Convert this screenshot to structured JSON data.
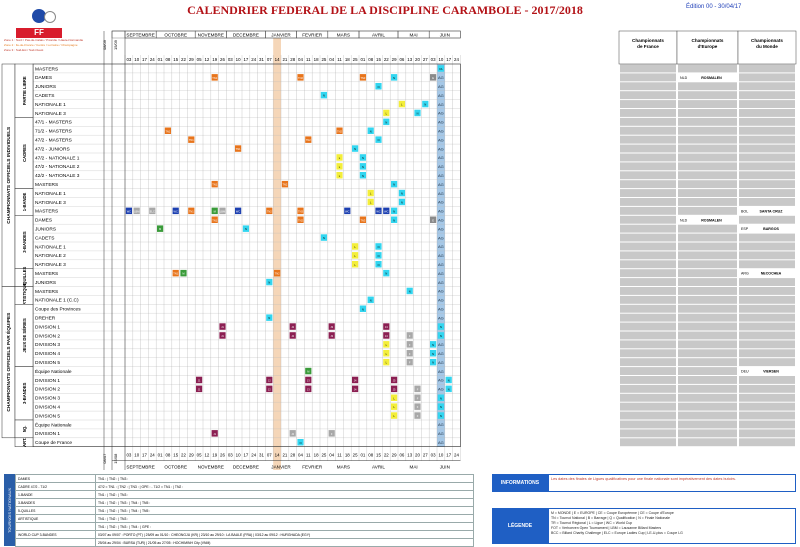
{
  "title": "CALENDRIER FEDERAL DE LA DISCIPLINE CARAMBOLE - 2017/2018",
  "edition": "Édition 00 - 30/04/17",
  "logo": {
    "text": "FF BILLARD"
  },
  "zones": [
    {
      "text": "Zone 1 : Nord / Pas-de-Calais / Picardie / Haute-Normandie",
      "class": "r"
    },
    {
      "text": "Zone 2 : Ile-de-France / Centre / Lorraine / Champagne",
      "class": "o"
    },
    {
      "text": "Zone 3 : Sud-Est / Sud-Ouest",
      "class": "r"
    }
  ],
  "date_corner": {
    "top": "08/09",
    "top2": "15/09",
    "bottom": "08/07",
    "bottom2": "15/08"
  },
  "months": [
    {
      "name": "SEPTEMBRE",
      "days": [
        "03",
        "10",
        "17",
        "24"
      ]
    },
    {
      "name": "OCTOBRE",
      "days": [
        "01",
        "08",
        "15",
        "22",
        "29"
      ]
    },
    {
      "name": "NOVEMBRE",
      "days": [
        "05",
        "12",
        "19",
        "26"
      ]
    },
    {
      "name": "DECEMBRE",
      "days": [
        "03",
        "10",
        "17",
        "24",
        "31"
      ]
    },
    {
      "name": "JANVIER",
      "days": [
        "07",
        "14",
        "21",
        "28"
      ]
    },
    {
      "name": "FEVRIER",
      "days": [
        "04",
        "11",
        "18",
        "25"
      ]
    },
    {
      "name": "MARS",
      "days": [
        "04",
        "11",
        "18",
        "25"
      ]
    },
    {
      "name": "AVRIL",
      "days": [
        "01",
        "08",
        "15",
        "22",
        "29"
      ]
    },
    {
      "name": "MAI",
      "days": [
        "06",
        "13",
        "20",
        "27"
      ]
    },
    {
      "name": "JUIN",
      "days": [
        "03",
        "10",
        "17",
        "24"
      ]
    }
  ],
  "champ_headers": [
    "Championnats de France",
    "Championnats d'Europe",
    "Championnats du Monde"
  ],
  "groups": [
    {
      "label": "CHAMPIONNATS OFFICIELS INDIVIDUELS",
      "from": 0,
      "to": 24
    },
    {
      "label": "CHAMPIONNATS OFFICIELS PAR ÉQUIPES",
      "from": 25,
      "to": 41
    }
  ],
  "sections": [
    {
      "label": "PARTIE LIBRE",
      "from": 0,
      "to": 5
    },
    {
      "label": "CADRES",
      "from": 6,
      "to": 13
    },
    {
      "label": "1-BANDE",
      "from": 14,
      "to": 16
    },
    {
      "label": "3-BANDES",
      "from": 17,
      "to": 22
    },
    {
      "label": "5-QUILLES",
      "from": 23,
      "to": 24
    },
    {
      "label": "ARTISTIQUE",
      "from": 25,
      "to": 26
    },
    {
      "label": "JEUX DE SÉRIES",
      "from": 27,
      "to": 33
    },
    {
      "label": "3-BANDES",
      "from": 34,
      "to": 39
    },
    {
      "label": "5Q.",
      "from": 40,
      "to": 41
    },
    {
      "label": "ART.",
      "from": 42,
      "to": 42
    }
  ],
  "rows": [
    {
      "name": "MASTERS"
    },
    {
      "name": "DAMES",
      "eu": "ROSMALEN",
      "eu_code": "NLD"
    },
    {
      "name": "JUNIORS"
    },
    {
      "name": "CADETS"
    },
    {
      "name": "NATIONALE 1"
    },
    {
      "name": "NATIONALE 3"
    },
    {
      "name": "47/1 - MASTERS"
    },
    {
      "name": "71/2 - MASTERS"
    },
    {
      "name": "47/2 - MASTERS"
    },
    {
      "name": "47/2 - JUNIORS"
    },
    {
      "name": "47/2 - NATIONALE 1"
    },
    {
      "name": "47/2 - NATIONALE 2"
    },
    {
      "name": "42/2 - NATIONALE 3"
    },
    {
      "name": "MASTERS"
    },
    {
      "name": "NATIONALE 1"
    },
    {
      "name": "NATIONALE 3"
    },
    {
      "name": "MASTERS",
      "world": "SANTA CRUZ",
      "world_code": "BOL"
    },
    {
      "name": "DAMES",
      "eu": "ROSMALEN",
      "eu_code": "NLD"
    },
    {
      "name": "JUNIORS",
      "world": "BARGOS",
      "world_code": "ESP"
    },
    {
      "name": "CADETS"
    },
    {
      "name": "NATIONALE 1"
    },
    {
      "name": "NATIONALE 2"
    },
    {
      "name": "NATIONALE 3"
    },
    {
      "name": "MASTERS",
      "world": "NECOCHEA",
      "world_code": "ARG"
    },
    {
      "name": "JUNIORS"
    },
    {
      "name": "MASTERS"
    },
    {
      "name": "NATIONALE 1 (C.C)"
    },
    {
      "name": "Coupe des Provinces"
    },
    {
      "name": "DREHER"
    },
    {
      "name": "DIVISION 1"
    },
    {
      "name": "DIVISION 2"
    },
    {
      "name": "DIVISION 3"
    },
    {
      "name": "DIVISION 4"
    },
    {
      "name": "DIVISION 5"
    },
    {
      "name": "Équipe Nationale",
      "world": "VIERSEN",
      "world_code": "DEU"
    },
    {
      "name": "DIVISION 1"
    },
    {
      "name": "DIVISION 2"
    },
    {
      "name": "DIVISION 3"
    },
    {
      "name": "DIVISION 4"
    },
    {
      "name": "DIVISION 5"
    },
    {
      "name": "Équipe Nationale"
    },
    {
      "name": "DIVISION 1"
    },
    {
      "name": "Coupe de France"
    }
  ],
  "events": [
    {
      "r": 0,
      "c": 40,
      "t": "FA",
      "k": "cy"
    },
    {
      "r": 1,
      "c": 11,
      "t": "TN1",
      "k": "or"
    },
    {
      "r": 1,
      "c": 22,
      "t": "TN2",
      "k": "or"
    },
    {
      "r": 1,
      "c": 30,
      "t": "TN3",
      "k": "or"
    },
    {
      "r": 1,
      "c": 34,
      "t": "N",
      "k": "cy"
    },
    {
      "r": 1,
      "c": 39,
      "t": "E",
      "k": "gr"
    },
    {
      "r": 2,
      "c": 32,
      "t": "N",
      "k": "cy"
    },
    {
      "r": 3,
      "c": 25,
      "t": "N",
      "k": "cy"
    },
    {
      "r": 4,
      "c": 35,
      "t": "L",
      "k": "ye"
    },
    {
      "r": 4,
      "c": 38,
      "t": "N",
      "k": "cy"
    },
    {
      "r": 5,
      "c": 33,
      "t": "L",
      "k": "ye"
    },
    {
      "r": 5,
      "c": 37,
      "t": "N",
      "k": "cy"
    },
    {
      "r": 6,
      "c": 33,
      "t": "N",
      "k": "cy"
    },
    {
      "r": 7,
      "c": 5,
      "t": "TN1",
      "k": "or"
    },
    {
      "r": 7,
      "c": 27,
      "t": "TN2",
      "k": "or"
    },
    {
      "r": 7,
      "c": 31,
      "t": "N",
      "k": "cy"
    },
    {
      "r": 8,
      "c": 8,
      "t": "TN1",
      "k": "or"
    },
    {
      "r": 8,
      "c": 23,
      "t": "TN2",
      "k": "or"
    },
    {
      "r": 8,
      "c": 32,
      "t": "N",
      "k": "cy"
    },
    {
      "r": 9,
      "c": 14,
      "t": "TN1",
      "k": "or"
    },
    {
      "r": 9,
      "c": 29,
      "t": "N",
      "k": "cy"
    },
    {
      "r": 10,
      "c": 27,
      "t": "L",
      "k": "ye"
    },
    {
      "r": 10,
      "c": 30,
      "t": "N",
      "k": "cy"
    },
    {
      "r": 11,
      "c": 27,
      "t": "L",
      "k": "ye"
    },
    {
      "r": 11,
      "c": 30,
      "t": "N",
      "k": "cy"
    },
    {
      "r": 12,
      "c": 27,
      "t": "L",
      "k": "ye"
    },
    {
      "r": 12,
      "c": 30,
      "t": "N",
      "k": "cy"
    },
    {
      "r": 13,
      "c": 11,
      "t": "TN1",
      "k": "or"
    },
    {
      "r": 13,
      "c": 20,
      "t": "TN2",
      "k": "or"
    },
    {
      "r": 13,
      "c": 34,
      "t": "N",
      "k": "cy"
    },
    {
      "r": 14,
      "c": 31,
      "t": "L",
      "k": "ye"
    },
    {
      "r": 14,
      "c": 35,
      "t": "N",
      "k": "cy"
    },
    {
      "r": 15,
      "c": 31,
      "t": "L",
      "k": "ye"
    },
    {
      "r": 15,
      "c": 35,
      "t": "N",
      "k": "cy"
    },
    {
      "r": 16,
      "c": 0,
      "t": "WC",
      "k": "bl"
    },
    {
      "r": 16,
      "c": 1,
      "t": "LBM",
      "k": "gy"
    },
    {
      "r": 16,
      "c": 3,
      "t": "ELC",
      "k": "gy"
    },
    {
      "r": 16,
      "c": 6,
      "t": "WC",
      "k": "bl"
    },
    {
      "r": 16,
      "c": 8,
      "t": "TN1",
      "k": "or"
    },
    {
      "r": 16,
      "c": 11,
      "t": "M",
      "k": "gn"
    },
    {
      "r": 16,
      "c": 12,
      "t": "LBM",
      "k": "gy"
    },
    {
      "r": 16,
      "c": 14,
      "t": "WC",
      "k": "bl"
    },
    {
      "r": 16,
      "c": 18,
      "t": "TN2",
      "k": "or"
    },
    {
      "r": 16,
      "c": 22,
      "t": "TN3",
      "k": "or"
    },
    {
      "r": 16,
      "c": 28,
      "t": "WC",
      "k": "bl"
    },
    {
      "r": 16,
      "c": 32,
      "t": "WC",
      "k": "bl"
    },
    {
      "r": 16,
      "c": 33,
      "t": "WC",
      "k": "bl"
    },
    {
      "r": 16,
      "c": 34,
      "t": "N",
      "k": "cy"
    },
    {
      "r": 17,
      "c": 11,
      "t": "TN1",
      "k": "or"
    },
    {
      "r": 17,
      "c": 22,
      "t": "TN2",
      "k": "or"
    },
    {
      "r": 17,
      "c": 30,
      "t": "TN3",
      "k": "or"
    },
    {
      "r": 17,
      "c": 34,
      "t": "N",
      "k": "cy"
    },
    {
      "r": 17,
      "c": 39,
      "t": "E",
      "k": "gr"
    },
    {
      "r": 18,
      "c": 4,
      "t": "M",
      "k": "gn"
    },
    {
      "r": 18,
      "c": 15,
      "t": "N",
      "k": "cy"
    },
    {
      "r": 19,
      "c": 25,
      "t": "N",
      "k": "cy"
    },
    {
      "r": 20,
      "c": 29,
      "t": "L",
      "k": "ye"
    },
    {
      "r": 20,
      "c": 32,
      "t": "N",
      "k": "cy"
    },
    {
      "r": 21,
      "c": 29,
      "t": "L",
      "k": "ye"
    },
    {
      "r": 21,
      "c": 32,
      "t": "N",
      "k": "cy"
    },
    {
      "r": 22,
      "c": 29,
      "t": "L",
      "k": "ye"
    },
    {
      "r": 22,
      "c": 32,
      "t": "N",
      "k": "cy"
    },
    {
      "r": 23,
      "c": 6,
      "t": "TN1",
      "k": "or"
    },
    {
      "r": 23,
      "c": 7,
      "t": "M",
      "k": "gn"
    },
    {
      "r": 23,
      "c": 19,
      "t": "TN2",
      "k": "or"
    },
    {
      "r": 23,
      "c": 33,
      "t": "N",
      "k": "cy"
    },
    {
      "r": 24,
      "c": 18,
      "t": "N",
      "k": "cy"
    },
    {
      "r": 25,
      "c": 36,
      "t": "N",
      "k": "cy"
    },
    {
      "r": 26,
      "c": 31,
      "t": "N",
      "k": "cy"
    },
    {
      "r": 27,
      "c": 30,
      "t": "N",
      "k": "cy"
    },
    {
      "r": 28,
      "c": 18,
      "t": "N",
      "k": "cy"
    },
    {
      "r": 29,
      "c": 12,
      "t": "J1",
      "k": "pu"
    },
    {
      "r": 29,
      "c": 21,
      "t": "J2",
      "k": "pu"
    },
    {
      "r": 29,
      "c": 26,
      "t": "J3",
      "k": "pu"
    },
    {
      "r": 29,
      "c": 33,
      "t": "J4",
      "k": "pu"
    },
    {
      "r": 29,
      "c": 40,
      "t": "N",
      "k": "cy"
    },
    {
      "r": 30,
      "c": 12,
      "t": "J1",
      "k": "pu"
    },
    {
      "r": 30,
      "c": 21,
      "t": "J2",
      "k": "pu"
    },
    {
      "r": 30,
      "c": 26,
      "t": "J3",
      "k": "pu"
    },
    {
      "r": 30,
      "c": 33,
      "t": "J4",
      "k": "pu"
    },
    {
      "r": 30,
      "c": 36,
      "t": "F",
      "k": "gy"
    },
    {
      "r": 30,
      "c": 40,
      "t": "N",
      "k": "cy"
    },
    {
      "r": 31,
      "c": 33,
      "t": "L",
      "k": "ye"
    },
    {
      "r": 31,
      "c": 36,
      "t": "F",
      "k": "gy"
    },
    {
      "r": 31,
      "c": 39,
      "t": "N",
      "k": "cy"
    },
    {
      "r": 32,
      "c": 33,
      "t": "L",
      "k": "ye"
    },
    {
      "r": 32,
      "c": 36,
      "t": "F",
      "k": "gy"
    },
    {
      "r": 32,
      "c": 39,
      "t": "N",
      "k": "cy"
    },
    {
      "r": 33,
      "c": 33,
      "t": "L",
      "k": "ye"
    },
    {
      "r": 33,
      "c": 36,
      "t": "F",
      "k": "gy"
    },
    {
      "r": 33,
      "c": 39,
      "t": "N",
      "k": "cy"
    },
    {
      "r": 34,
      "c": 23,
      "t": "M",
      "k": "gn"
    },
    {
      "r": 35,
      "c": 9,
      "t": "J1",
      "k": "pu"
    },
    {
      "r": 35,
      "c": 18,
      "t": "J2",
      "k": "pu"
    },
    {
      "r": 35,
      "c": 23,
      "t": "J3",
      "k": "pu"
    },
    {
      "r": 35,
      "c": 29,
      "t": "J4",
      "k": "pu"
    },
    {
      "r": 35,
      "c": 34,
      "t": "J5",
      "k": "pu"
    },
    {
      "r": 35,
      "c": 41,
      "t": "N",
      "k": "cy"
    },
    {
      "r": 36,
      "c": 9,
      "t": "J1",
      "k": "pu"
    },
    {
      "r": 36,
      "c": 18,
      "t": "J2",
      "k": "pu"
    },
    {
      "r": 36,
      "c": 23,
      "t": "J3",
      "k": "pu"
    },
    {
      "r": 36,
      "c": 29,
      "t": "J4",
      "k": "pu"
    },
    {
      "r": 36,
      "c": 34,
      "t": "J5",
      "k": "pu"
    },
    {
      "r": 36,
      "c": 37,
      "t": "F",
      "k": "gy"
    },
    {
      "r": 36,
      "c": 41,
      "t": "N",
      "k": "cy"
    },
    {
      "r": 37,
      "c": 34,
      "t": "L",
      "k": "ye"
    },
    {
      "r": 37,
      "c": 37,
      "t": "F",
      "k": "gy"
    },
    {
      "r": 37,
      "c": 40,
      "t": "N",
      "k": "cy"
    },
    {
      "r": 38,
      "c": 34,
      "t": "L",
      "k": "ye"
    },
    {
      "r": 38,
      "c": 37,
      "t": "F",
      "k": "gy"
    },
    {
      "r": 38,
      "c": 40,
      "t": "N",
      "k": "cy"
    },
    {
      "r": 39,
      "c": 34,
      "t": "L",
      "k": "ye"
    },
    {
      "r": 39,
      "c": 37,
      "t": "F",
      "k": "gy"
    },
    {
      "r": 39,
      "c": 40,
      "t": "N",
      "k": "cy"
    },
    {
      "r": 41,
      "c": 11,
      "t": "J1",
      "k": "pu"
    },
    {
      "r": 41,
      "c": 21,
      "t": "J2",
      "k": "gy"
    },
    {
      "r": 41,
      "c": 26,
      "t": "F",
      "k": "gy"
    },
    {
      "r": 42,
      "c": 22,
      "t": "N",
      "k": "cy"
    }
  ],
  "ag_label": "AG",
  "colors": {
    "or": "#e8741b",
    "cy": "#33d6f0",
    "ye": "#f3ee3a",
    "gy": "#a8a8a8",
    "pu": "#8b1f52",
    "gn": "#3a9b3a",
    "bl": "#1c3fb0",
    "gr": "#8a8a8a",
    "head": "#2a5ea8",
    "ag": "#a5c8e8",
    "champ": "#c8c8c8",
    "dec": "#f5d6b8"
  },
  "national_tours": {
    "label": "TOURNOIS NATIONAUX",
    "rows": [
      [
        "DAMES",
        "TN1 :  |  TN2 :  |  TN3 :"
      ],
      [
        "CADRE 47/2 - 71/2",
        "47/2 = TN1 :  |  TN2 :  |  TN3 :  |  GPE :  - 71/2 = TN1 :  |  TN2 :"
      ],
      [
        "1-BANDE",
        "TN1 :  |  TN2 :  |  TN3 :"
      ],
      [
        "3-BANDES",
        "TN1 :  |  TN2 :  |  TN3 :  |  TN4 :  |  TN5 :"
      ],
      [
        "5-QUILLES",
        "TN1 :  |  TN2 :  |  TN3 :  |  TN4 :  |  TN5 :"
      ],
      [
        "ARTISTIQUE",
        "TN1 :  |  TN2 :  |  TN3 :"
      ],
      [
        "",
        "TN1 :  |  TN2 :  |  TN3 :  |  TN4 :  |  GPE :"
      ],
      [
        "WORLD CUP 3-BANDES",
        "03/07 au 09/07 : PORTO (PT)  |  25/09 au 01/10 : CHEONGJU (KR)  |  23/10 au 29/10 : LA BAULE (FRA)  |  03/12 au 09/12 : HURGHADA (EGY)"
      ],
      [
        "",
        "25/04 au 29/04 : BURSA (TUR)  |  21/05 au 27/05 : HOCHIMINH City (VNM)"
      ]
    ]
  },
  "informations": {
    "title": "INFORMATIONS",
    "text": "Les dates des finales de Ligues qualificatives pour une finale nationale sont impérativement des dates butoirs."
  },
  "legende": {
    "title": "LÉGENDE",
    "lines": [
      "M = MONDE  |  E = EUROPE  |  CE = Coupe Européenne  |  CE = Coupe d'Europe",
      "TN = Tournoi National  |  B = Barrage  |  Q = Qualification  |  N = Finale Nationale",
      "TR = Tournoi Régional  |  L = Ligue  |  WC = World Cup",
      "FOT = Verhoeven Open Tournament  |  LBM = Lausanne Billard Masters",
      "BCC = Billard Charity Challenge  |  ELC = Europe Ladies Cup  |  LE-U-plus = Coupe LG"
    ]
  }
}
